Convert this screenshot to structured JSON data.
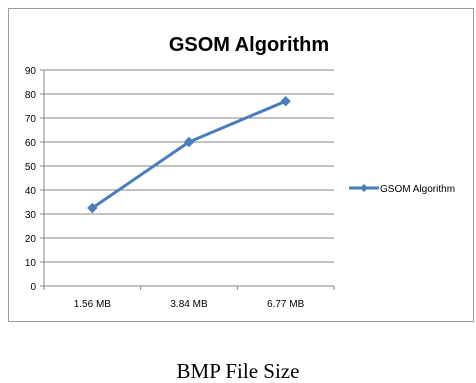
{
  "chart_data": {
    "type": "line",
    "title": "GSOM Algorithm",
    "categories": [
      "1.56 MB",
      "3.84 MB",
      "6.77 MB"
    ],
    "series": [
      {
        "name": "GSOM Algorithm",
        "values": [
          32.5,
          60,
          77
        ]
      }
    ],
    "ylim": [
      0,
      90
    ],
    "yticks": [
      0,
      10,
      20,
      30,
      40,
      50,
      60,
      70,
      80,
      90
    ],
    "grid": "horizontal",
    "legend_position": "right",
    "line_color": "#4a7ebb"
  },
  "caption": "BMP File Size"
}
